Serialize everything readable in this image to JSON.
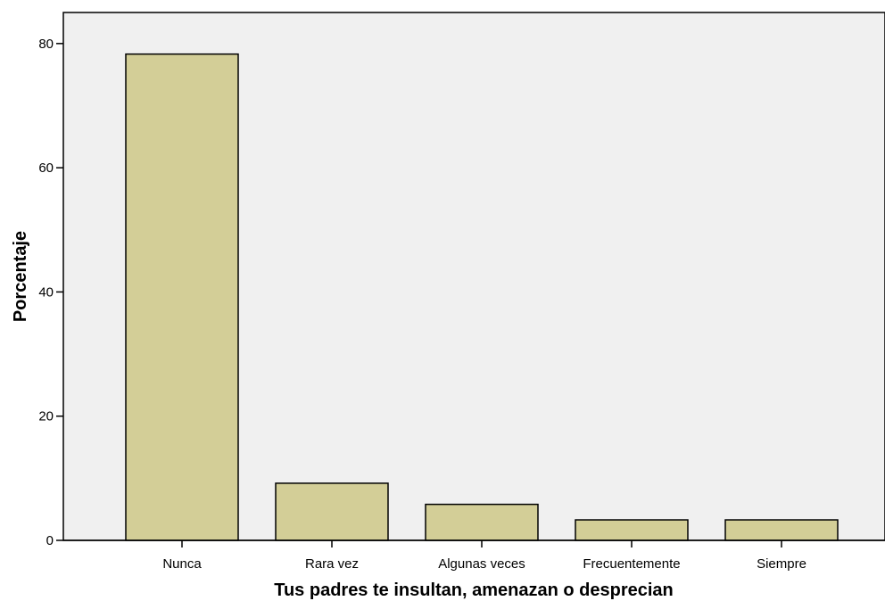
{
  "chart_data": {
    "type": "bar",
    "title": "",
    "xlabel": "Tus padres te insultan, amenazan o desprecian",
    "ylabel": "Porcentaje",
    "categories": [
      "Nunca",
      "Rara vez",
      "Algunas veces",
      "Frecuentemente",
      "Siempre"
    ],
    "values": [
      78.3,
      9.2,
      5.8,
      3.3,
      3.3
    ],
    "ylim": [
      0,
      85
    ],
    "yticks": [
      "0",
      "20",
      "40",
      "60",
      "80"
    ],
    "grid": false,
    "colors": {
      "bar_fill": "#d3ce97",
      "bar_stroke": "#000000",
      "plot_background": "#f0f0f0"
    }
  }
}
